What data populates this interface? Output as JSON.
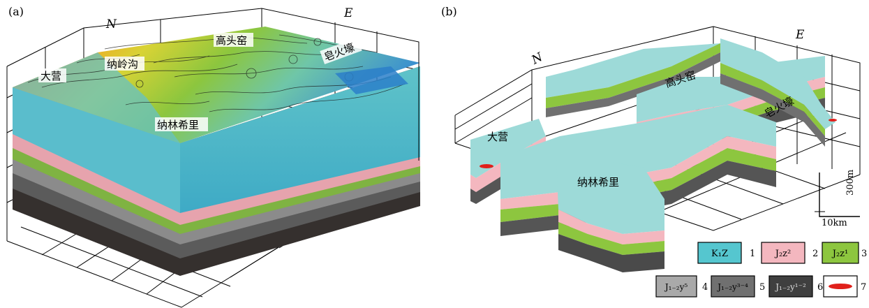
{
  "panel_a": {
    "label": "(a)",
    "north": "N",
    "east": "E",
    "places": [
      "大营",
      "纳岭沟",
      "高头窑",
      "皂火壕",
      "纳林希里"
    ]
  },
  "panel_b": {
    "label": "(b)",
    "north": "N",
    "east": "E",
    "places": [
      "大营",
      "高头窑",
      "皂火壕",
      "纳林希里"
    ],
    "scale_vertical": "300m",
    "scale_horizontal": "10km"
  },
  "legend": [
    {
      "code": "K₁Z",
      "num": "1",
      "color": "#55c6cf"
    },
    {
      "code": "J₂z²",
      "num": "2",
      "color": "#f4b7bf"
    },
    {
      "code": "J₂z¹",
      "num": "3",
      "color": "#8dc63f"
    },
    {
      "code": "J₁₋₂y⁵",
      "num": "4",
      "color": "#a9a9a9"
    },
    {
      "code": "J₁₋₂y³⁻⁴",
      "num": "5",
      "color": "#707070"
    },
    {
      "code": "J₁₋₂y¹⁻²",
      "num": "6",
      "color": "#3f3f3f"
    },
    {
      "code": "",
      "num": "7",
      "color": "#e0201b"
    }
  ],
  "colors": {
    "k1z": "#55c6cf",
    "j2z2": "#f4b7bf",
    "j2z1": "#8dc63f",
    "y5": "#a9a9a9",
    "y34": "#707070",
    "y12": "#3f3f3f",
    "ore": "#e0201b"
  }
}
